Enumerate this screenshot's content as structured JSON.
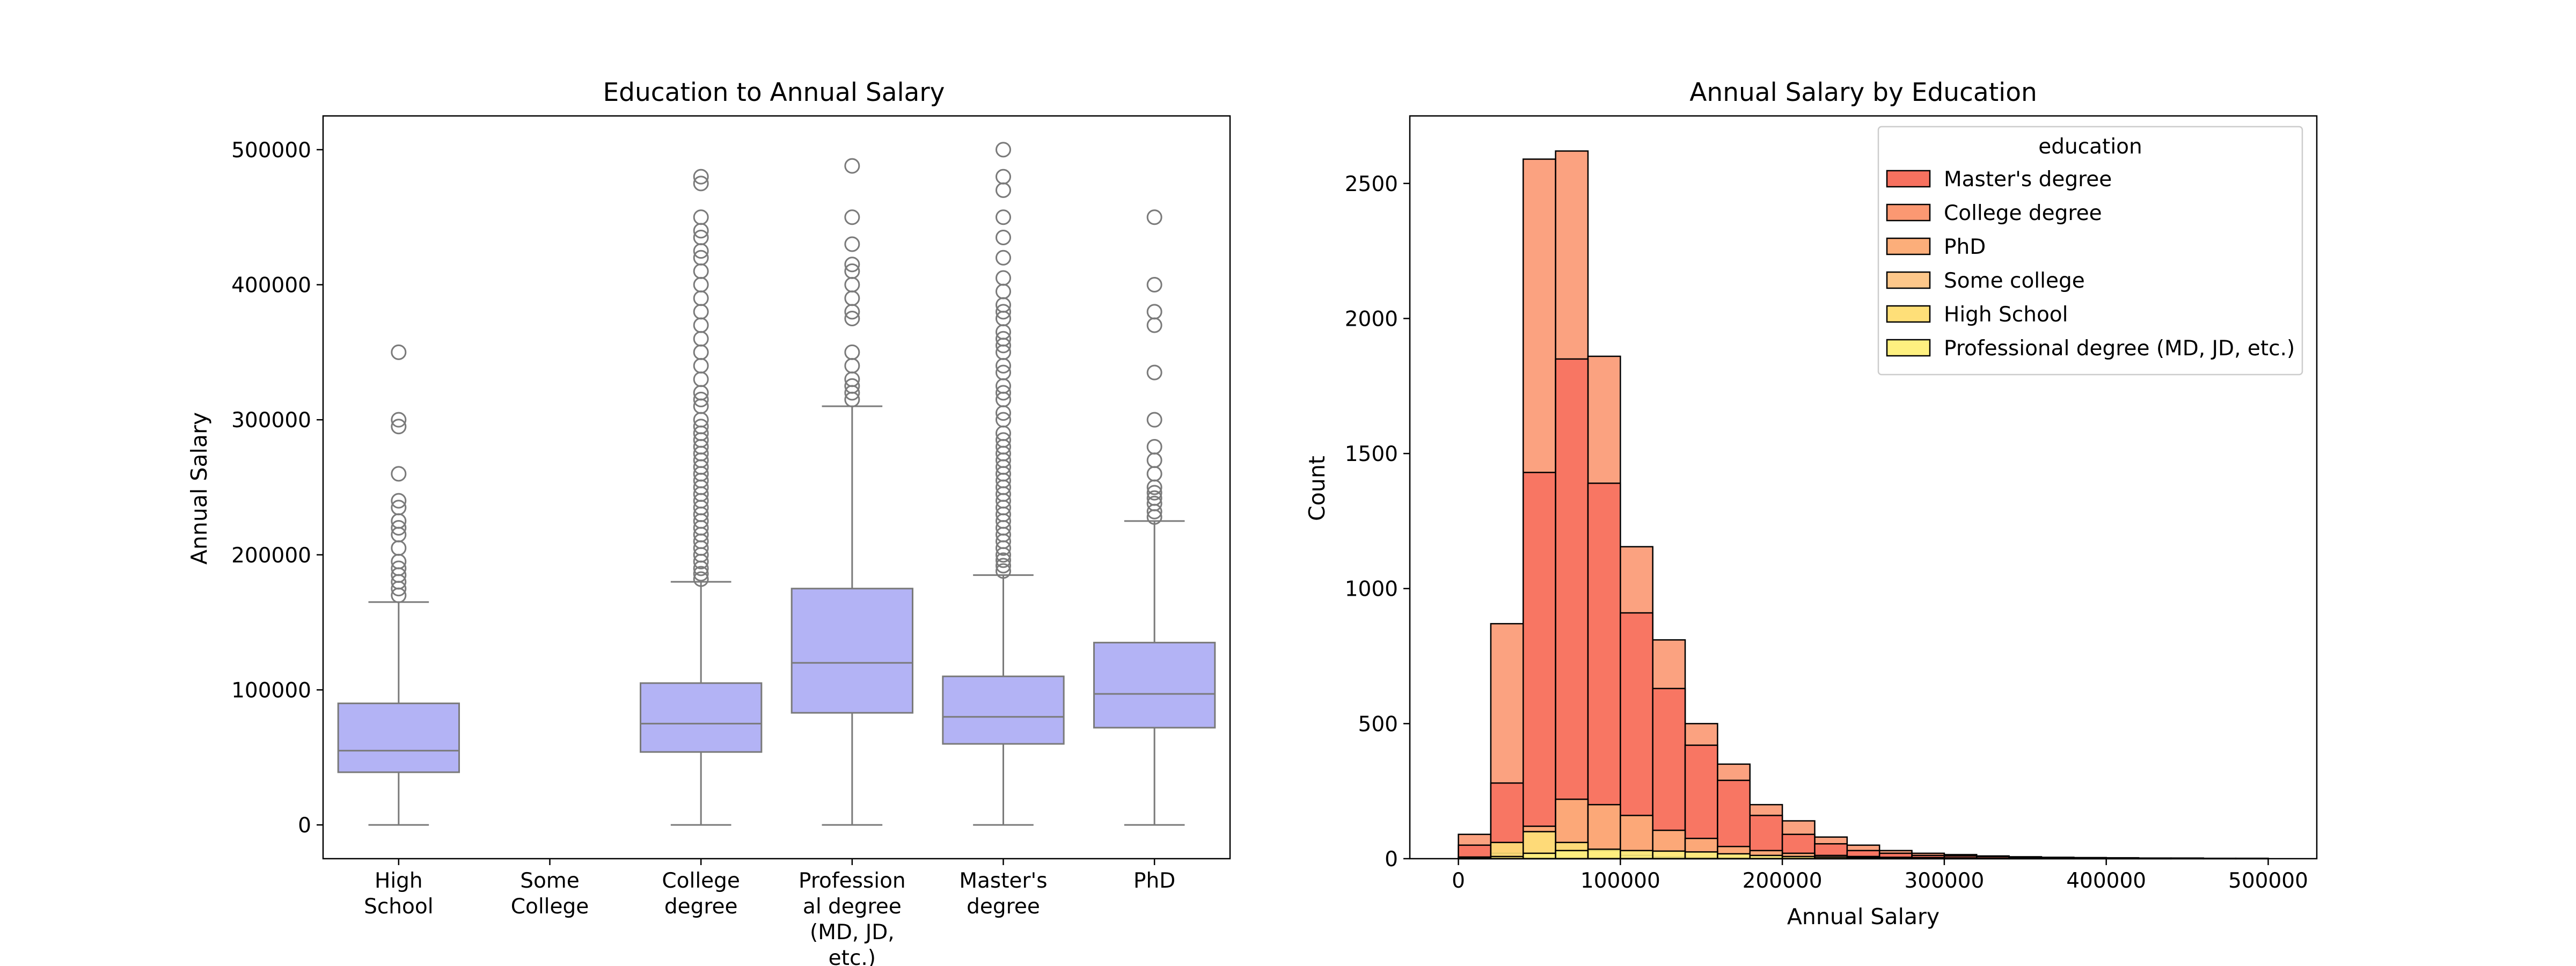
{
  "chart_data": [
    {
      "type": "box",
      "title": "Education to Annual Salary",
      "xlabel": "",
      "ylabel": "Annual Salary",
      "ylim": [
        -25000,
        525000
      ],
      "yticks": [
        0,
        100000,
        200000,
        300000,
        400000,
        500000
      ],
      "box_color": "#b3b3f5",
      "edge_color": "#7a7a7a",
      "categories": [
        {
          "label": [
            "High",
            "School"
          ],
          "box": {
            "whislo": 0,
            "q1": 39000,
            "med": 55000,
            "q3": 90000,
            "whishi": 165000
          },
          "fliers": [
            170000,
            175000,
            180000,
            185000,
            190000,
            195000,
            205000,
            215000,
            220000,
            225000,
            235000,
            240000,
            260000,
            295000,
            300000,
            350000
          ]
        },
        {
          "label": [
            "Some",
            "College"
          ],
          "box": null,
          "fliers": []
        },
        {
          "label": [
            "College",
            "degree"
          ],
          "box": {
            "whislo": 0,
            "q1": 54000,
            "med": 75000,
            "q3": 105000,
            "whishi": 180000
          },
          "fliers": [
            182000,
            186000,
            190000,
            195000,
            200000,
            205000,
            210000,
            215000,
            220000,
            225000,
            230000,
            235000,
            240000,
            245000,
            250000,
            255000,
            260000,
            265000,
            270000,
            275000,
            280000,
            285000,
            290000,
            295000,
            300000,
            310000,
            315000,
            320000,
            330000,
            340000,
            350000,
            360000,
            370000,
            380000,
            390000,
            400000,
            410000,
            420000,
            425000,
            435000,
            440000,
            450000,
            475000,
            480000
          ]
        },
        {
          "label": [
            "Profession",
            "al degree",
            "(MD, JD,",
            "etc.)"
          ],
          "box": {
            "whislo": 0,
            "q1": 83000,
            "med": 120000,
            "q3": 175000,
            "whishi": 310000
          },
          "fliers": [
            315000,
            320000,
            325000,
            330000,
            340000,
            350000,
            375000,
            380000,
            390000,
            400000,
            410000,
            415000,
            430000,
            450000,
            488000
          ]
        },
        {
          "label": [
            "Master's",
            "degree"
          ],
          "box": {
            "whislo": 0,
            "q1": 60000,
            "med": 80000,
            "q3": 110000,
            "whishi": 185000
          },
          "fliers": [
            188000,
            192000,
            196000,
            200000,
            205000,
            210000,
            215000,
            220000,
            225000,
            230000,
            235000,
            240000,
            245000,
            250000,
            255000,
            260000,
            265000,
            270000,
            275000,
            280000,
            285000,
            290000,
            300000,
            305000,
            315000,
            320000,
            325000,
            335000,
            340000,
            350000,
            355000,
            360000,
            365000,
            375000,
            380000,
            385000,
            395000,
            405000,
            420000,
            435000,
            450000,
            470000,
            480000,
            500000
          ]
        },
        {
          "label": [
            "PhD"
          ],
          "box": {
            "whislo": 0,
            "q1": 72000,
            "med": 97000,
            "q3": 135000,
            "whishi": 225000
          },
          "fliers": [
            228000,
            232000,
            238000,
            242000,
            246000,
            250000,
            260000,
            270000,
            280000,
            300000,
            335000,
            370000,
            380000,
            400000,
            450000
          ]
        }
      ]
    },
    {
      "type": "histogram",
      "title": "Annual Salary by Education",
      "xlabel": "Annual Salary",
      "ylabel": "Count",
      "xlim": [
        -30000,
        530000
      ],
      "ylim": [
        0,
        2750
      ],
      "xticks": [
        0,
        100000,
        200000,
        300000,
        400000,
        500000
      ],
      "yticks": [
        0,
        500,
        1000,
        1500,
        2000,
        2500
      ],
      "bins": [
        0,
        20000,
        40000,
        60000,
        80000,
        100000,
        120000,
        140000,
        160000,
        180000,
        200000,
        220000,
        240000,
        260000,
        280000,
        300000,
        320000,
        340000,
        360000,
        380000,
        400000,
        420000,
        440000,
        460000,
        480000,
        500000
      ],
      "legend_title": "education",
      "legend_position": "top-right",
      "series": [
        {
          "name": "Master's degree",
          "color": "#f7715f",
          "values": [
            50,
            280,
            1430,
            1850,
            1390,
            910,
            630,
            420,
            290,
            160,
            90,
            55,
            30,
            20,
            12,
            10,
            8,
            5,
            4,
            3,
            3,
            2,
            2,
            1,
            1
          ]
        },
        {
          "name": "College degree",
          "color": "#fb9872",
          "values": [
            90,
            870,
            2590,
            2620,
            1860,
            1155,
            810,
            500,
            350,
            200,
            140,
            80,
            50,
            30,
            20,
            15,
            10,
            7,
            5,
            4,
            3,
            2,
            2,
            1,
            1
          ]
        },
        {
          "name": "PhD",
          "color": "#fcae7a",
          "values": [
            3,
            20,
            120,
            220,
            200,
            160,
            105,
            75,
            45,
            30,
            20,
            12,
            8,
            5,
            4,
            3,
            2,
            2,
            1,
            1,
            1,
            1,
            0,
            0,
            0
          ]
        },
        {
          "name": "Some college",
          "color": "#fdc78a",
          "values": [
            0,
            0,
            0,
            0,
            0,
            0,
            0,
            0,
            0,
            0,
            0,
            0,
            0,
            0,
            0,
            0,
            0,
            0,
            0,
            0,
            0,
            0,
            0,
            0,
            0
          ]
        },
        {
          "name": "High School",
          "color": "#fedf78",
          "values": [
            6,
            60,
            100,
            60,
            30,
            12,
            6,
            3,
            2,
            1,
            1,
            1,
            0,
            0,
            0,
            0,
            0,
            0,
            0,
            0,
            0,
            0,
            0,
            0,
            0
          ]
        },
        {
          "name": "Professional degree (MD, JD, etc.)",
          "color": "#fef080",
          "values": [
            1,
            8,
            20,
            30,
            35,
            30,
            28,
            25,
            18,
            12,
            8,
            6,
            4,
            3,
            2,
            2,
            1,
            1,
            1,
            1,
            0,
            0,
            0,
            0,
            0
          ]
        }
      ]
    }
  ]
}
